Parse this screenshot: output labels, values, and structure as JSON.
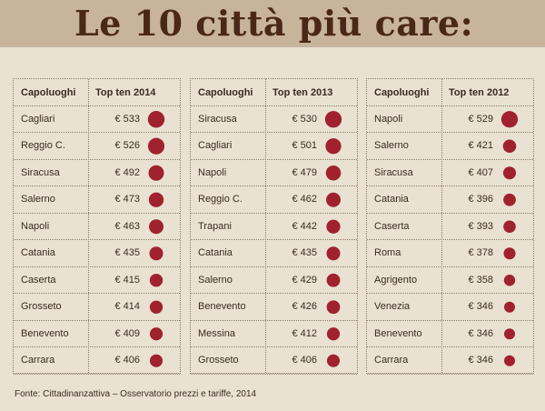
{
  "title": "Le 10 città più care:",
  "source": "Fonte: Cittadinanzattiva – Osservatorio prezzi e tariffe, 2014",
  "colors": {
    "dot": "#a0222e",
    "header_bar": "#c8b49a",
    "background": "#e9e2d3",
    "title": "#4a2818"
  },
  "chart_data": [
    {
      "type": "table",
      "col1_header": "Capoluoghi",
      "col2_header": "Top ten 2014",
      "rows": [
        {
          "city": "Cagliari",
          "price_label": "€ 533",
          "value": 533
        },
        {
          "city": "Reggio C.",
          "price_label": "€ 526",
          "value": 526
        },
        {
          "city": "Siracusa",
          "price_label": "€ 492",
          "value": 492
        },
        {
          "city": "Salerno",
          "price_label": "€ 473",
          "value": 473
        },
        {
          "city": "Napoli",
          "price_label": "€ 463",
          "value": 463
        },
        {
          "city": "Catania",
          "price_label": "€ 435",
          "value": 435
        },
        {
          "city": "Caserta",
          "price_label": "€ 415",
          "value": 415
        },
        {
          "city": "Grosseto",
          "price_label": "€ 414",
          "value": 414
        },
        {
          "city": "Benevento",
          "price_label": "€ 409",
          "value": 409
        },
        {
          "city": "Carrara",
          "price_label": "€ 406",
          "value": 406
        }
      ]
    },
    {
      "type": "table",
      "col1_header": "Capoluoghi",
      "col2_header": "Top ten 2013",
      "rows": [
        {
          "city": "Siracusa",
          "price_label": "€ 530",
          "value": 530
        },
        {
          "city": "Cagliari",
          "price_label": "€ 501",
          "value": 501
        },
        {
          "city": "Napoli",
          "price_label": "€ 479",
          "value": 479
        },
        {
          "city": "Reggio C.",
          "price_label": "€ 462",
          "value": 462
        },
        {
          "city": "Trapani",
          "price_label": "€ 442",
          "value": 442
        },
        {
          "city": "Catania",
          "price_label": "€ 435",
          "value": 435
        },
        {
          "city": "Salerno",
          "price_label": "€ 429",
          "value": 429
        },
        {
          "city": "Benevento",
          "price_label": "€ 426",
          "value": 426
        },
        {
          "city": "Messina",
          "price_label": "€ 412",
          "value": 412
        },
        {
          "city": "Grosseto",
          "price_label": "€ 406",
          "value": 406
        }
      ]
    },
    {
      "type": "table",
      "col1_header": "Capoluoghi",
      "col2_header": "Top ten 2012",
      "rows": [
        {
          "city": "Napoli",
          "price_label": "€ 529",
          "value": 529
        },
        {
          "city": "Salerno",
          "price_label": "€ 421",
          "value": 421
        },
        {
          "city": "Siracusa",
          "price_label": "€ 407",
          "value": 407
        },
        {
          "city": "Catania",
          "price_label": "€ 396",
          "value": 396
        },
        {
          "city": "Caserta",
          "price_label": "€ 393",
          "value": 393
        },
        {
          "city": "Roma",
          "price_label": "€ 378",
          "value": 378
        },
        {
          "city": "Agrigento",
          "price_label": "€ 358",
          "value": 358
        },
        {
          "city": "Venezia",
          "price_label": "€ 346",
          "value": 346
        },
        {
          "city": "Benevento",
          "price_label": "€ 346",
          "value": 346
        },
        {
          "city": "Carrara",
          "price_label": "€ 346",
          "value": 346
        }
      ]
    }
  ]
}
